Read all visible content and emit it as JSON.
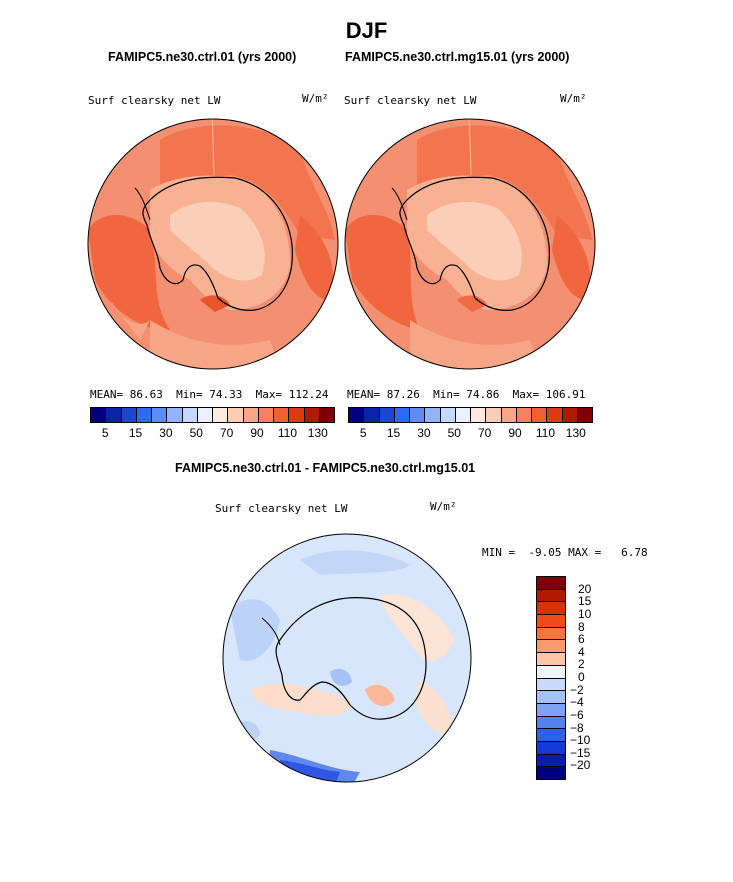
{
  "page": {
    "season": "DJF",
    "title_left": "FAMIPC5.ne30.ctrl.01 (yrs 2000)",
    "title_right": "FAMIPC5.ne30.ctrl.mg15.01 (yrs 2000)",
    "title_diff": "FAMIPC5.ne30.ctrl.01 - FAMIPC5.ne30.ctrl.mg15.01"
  },
  "chart_data": [
    {
      "type": "heatmap",
      "projection": "south-polar-stereographic",
      "variable": "Surf clearsky net LW",
      "units": "W/m²",
      "case": "FAMIPC5.ne30.ctrl.01 (yrs 2000)",
      "stats": {
        "mean_label": "MEAN=",
        "mean": "86.63",
        "min_label": "Min=",
        "min": "74.33",
        "max_label": "Max=",
        "max": "112.24"
      },
      "colorbar_tick_labels": [
        "5",
        "15",
        "30",
        "50",
        "70",
        "90",
        "110",
        "130"
      ]
    },
    {
      "type": "heatmap",
      "projection": "south-polar-stereographic",
      "variable": "Surf clearsky net LW",
      "units": "W/m²",
      "case": "FAMIPC5.ne30.ctrl.mg15.01 (yrs 2000)",
      "stats": {
        "mean_label": "MEAN=",
        "mean": "87.26",
        "min_label": "Min=",
        "min": "74.86",
        "max_label": "Max=",
        "max": "106.91"
      },
      "colorbar_tick_labels": [
        "5",
        "15",
        "30",
        "50",
        "70",
        "90",
        "110",
        "130"
      ]
    },
    {
      "type": "heatmap",
      "projection": "south-polar-stereographic",
      "variable": "Surf clearsky net LW",
      "units": "W/m²",
      "case": "FAMIPC5.ne30.ctrl.01 - FAMIPC5.ne30.ctrl.mg15.01",
      "stats": {
        "min_label": "MIN =",
        "min": "-9.05",
        "max_label": "MAX =",
        "max": "6.78"
      },
      "colorbar_tick_labels": [
        "20",
        "15",
        "10",
        "8",
        "6",
        "4",
        "2",
        "0",
        "−2",
        "−4",
        "−6",
        "−8",
        "−10",
        "−15",
        "−20"
      ]
    }
  ],
  "colors": {
    "abs_scale": [
      "#00007f",
      "#0a24a6",
      "#1b46d3",
      "#2f6bf0",
      "#5b8ef5",
      "#91b4fa",
      "#c4d8fd",
      "#e9f1ff",
      "#fde9dd",
      "#fccdb2",
      "#f8a887",
      "#f5825f",
      "#f15f37",
      "#dc3a10",
      "#b21a00",
      "#7f0000"
    ],
    "diff_scale": [
      "#7f0000",
      "#b21a00",
      "#d63300",
      "#ef4a1b",
      "#f7733f",
      "#fb9a70",
      "#fdc4a6",
      "#f0f4fb",
      "#c8dafc",
      "#a5c0f8",
      "#7ea3f3",
      "#5581ef",
      "#3060ea",
      "#1539d4",
      "#0a1fa6",
      "#00007f"
    ],
    "map_fill": "#f39071",
    "diff_fill": "#d7e6fb"
  }
}
